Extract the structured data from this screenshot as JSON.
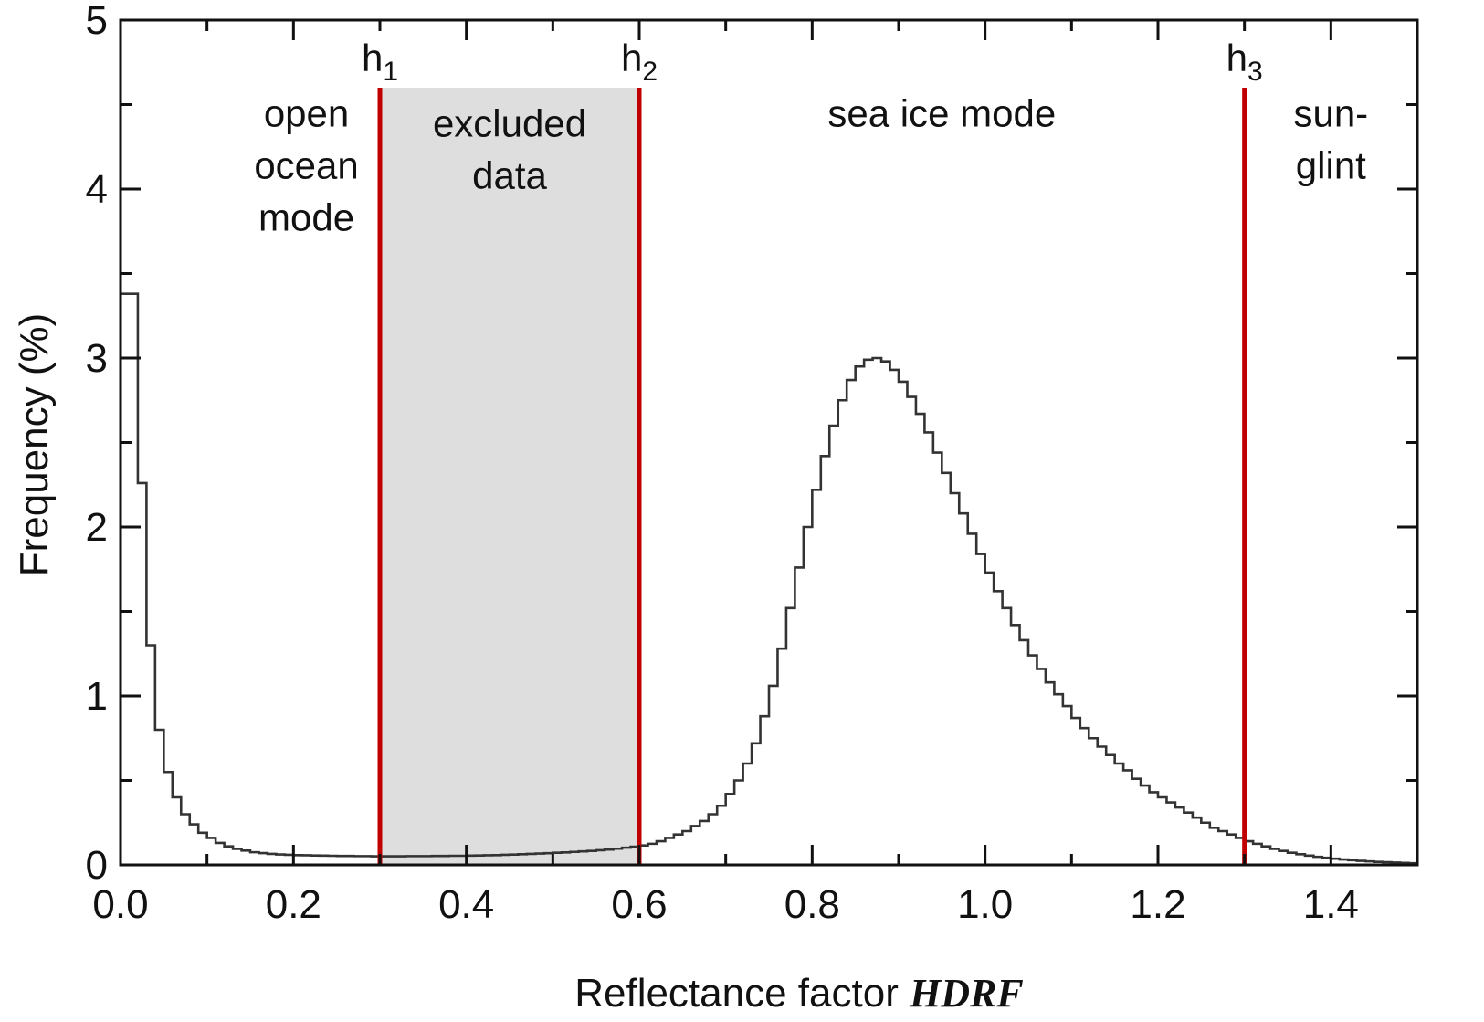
{
  "chart_data": {
    "type": "histogram",
    "title": "",
    "xlabel": {
      "text": "Reflectance factor ",
      "emphasis": "HDRF"
    },
    "ylabel": "Frequency (%)",
    "xlim": [
      0,
      1.5
    ],
    "ylim": [
      0,
      5
    ],
    "x_ticks": [
      0.0,
      0.2,
      0.4,
      0.6,
      0.8,
      1.0,
      1.2,
      1.4
    ],
    "x_tick_labels": [
      "0.0",
      "0.2",
      "0.4",
      "0.6",
      "0.8",
      "1.0",
      "1.2",
      "1.4"
    ],
    "y_ticks": [
      0,
      1,
      2,
      3,
      4,
      5
    ],
    "y_tick_labels": [
      "0",
      "1",
      "2",
      "3",
      "4",
      "5"
    ],
    "grid": false,
    "bin_width": 0.01,
    "frequencies": [
      3.38,
      3.38,
      2.26,
      1.3,
      0.8,
      0.55,
      0.4,
      0.3,
      0.24,
      0.19,
      0.16,
      0.13,
      0.11,
      0.095,
      0.085,
      0.075,
      0.07,
      0.065,
      0.062,
      0.06,
      0.058,
      0.057,
      0.056,
      0.055,
      0.054,
      0.053,
      0.053,
      0.052,
      0.052,
      0.051,
      0.051,
      0.051,
      0.051,
      0.052,
      0.052,
      0.052,
      0.053,
      0.053,
      0.054,
      0.054,
      0.055,
      0.056,
      0.057,
      0.058,
      0.06,
      0.061,
      0.063,
      0.065,
      0.067,
      0.069,
      0.072,
      0.074,
      0.077,
      0.08,
      0.083,
      0.087,
      0.091,
      0.096,
      0.102,
      0.108,
      0.115,
      0.125,
      0.14,
      0.16,
      0.18,
      0.2,
      0.23,
      0.26,
      0.3,
      0.35,
      0.42,
      0.5,
      0.6,
      0.72,
      0.88,
      1.06,
      1.28,
      1.52,
      1.76,
      2.0,
      2.22,
      2.42,
      2.6,
      2.75,
      2.87,
      2.95,
      2.99,
      3.0,
      2.98,
      2.93,
      2.86,
      2.77,
      2.67,
      2.56,
      2.44,
      2.32,
      2.2,
      2.08,
      1.96,
      1.84,
      1.73,
      1.62,
      1.52,
      1.42,
      1.33,
      1.24,
      1.16,
      1.08,
      1.01,
      0.94,
      0.87,
      0.81,
      0.75,
      0.7,
      0.65,
      0.6,
      0.56,
      0.51,
      0.47,
      0.43,
      0.4,
      0.37,
      0.34,
      0.31,
      0.28,
      0.25,
      0.22,
      0.2,
      0.18,
      0.16,
      0.14,
      0.125,
      0.11,
      0.095,
      0.083,
      0.072,
      0.063,
      0.055,
      0.048,
      0.042,
      0.037,
      0.032,
      0.028,
      0.024,
      0.021,
      0.018,
      0.016,
      0.014,
      0.012,
      0.01
    ],
    "excluded_region": {
      "x0": 0.3,
      "x1": 0.6,
      "y_top": 4.6,
      "color": "#dedede",
      "label": [
        "excluded",
        "data"
      ]
    },
    "thresholds": [
      {
        "name": "h",
        "sub": "1",
        "x": 0.3,
        "y_top": 4.6
      },
      {
        "name": "h",
        "sub": "2",
        "x": 0.6,
        "y_top": 4.6
      },
      {
        "name": "h",
        "sub": "3",
        "x": 1.3,
        "y_top": 4.6
      }
    ],
    "region_labels": [
      {
        "lines": [
          "open",
          "ocean",
          "mode"
        ],
        "x": 0.215,
        "y": 4.1
      },
      {
        "lines": [
          "sea ice mode"
        ],
        "x": 0.95,
        "y": 4.1
      },
      {
        "lines": [
          "sun-",
          "glint"
        ],
        "x": 1.4,
        "y": 4.1
      }
    ],
    "colors": {
      "threshold": "#c00000",
      "histogram": "#333333",
      "excluded": "#dedede",
      "axis": "#111111"
    }
  }
}
